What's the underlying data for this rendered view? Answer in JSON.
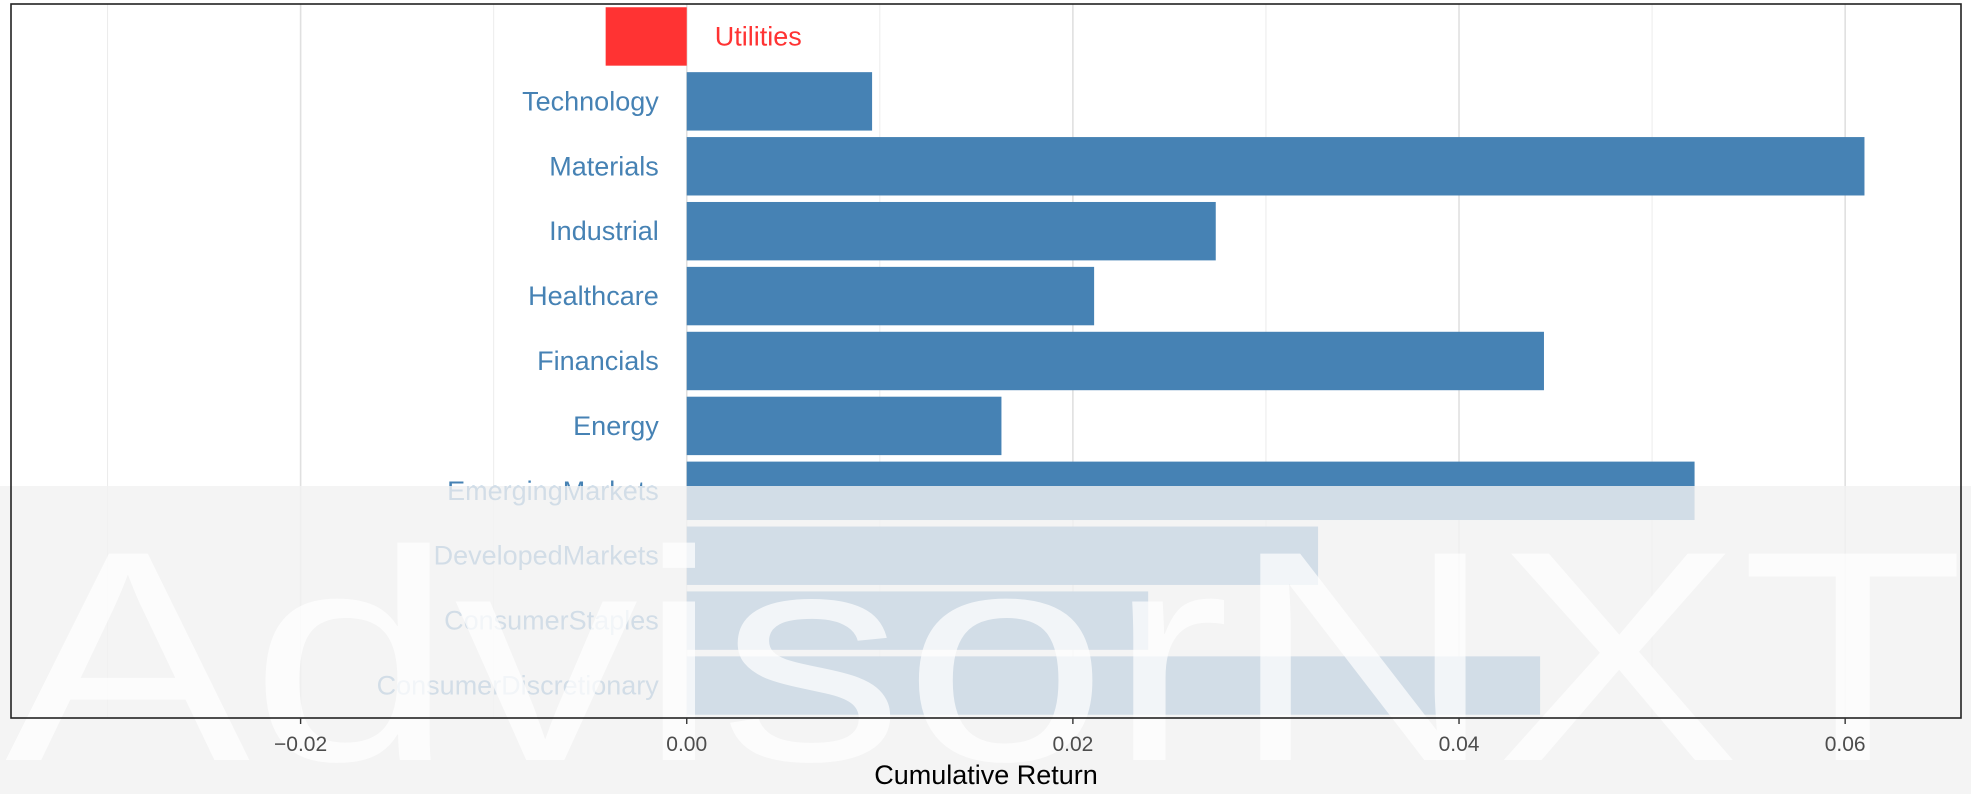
{
  "colors": {
    "positive_bar": "#4682B4",
    "negative_bar": "#FF3333",
    "positive_label": "#4682B4",
    "negative_label": "#FF3333",
    "watermark_band": "#F2F2F2",
    "watermark_text": "#FFFFFF",
    "watermark_accent": "#E9F6FA"
  },
  "watermark": {
    "text": "AdvisorNXT"
  },
  "chart_data": {
    "type": "bar",
    "orientation": "horizontal",
    "categories": [
      "ConsumerDiscretionary",
      "ConsumerStaples",
      "DevelopedMarkets",
      "EmergingMarkets",
      "Energy",
      "Financials",
      "Healthcare",
      "Industrial",
      "Materials",
      "Technology",
      "Utilities"
    ],
    "values": [
      0.0442,
      0.0239,
      0.0327,
      0.0522,
      0.0163,
      0.0444,
      0.0211,
      0.0274,
      0.061,
      0.0096,
      -0.0042
    ],
    "xlabel": "Cumulative Return",
    "ylabel": "",
    "xlim": [
      -0.035,
      0.066
    ],
    "xticks": [
      -0.02,
      0.0,
      0.02,
      0.04,
      0.06
    ],
    "xtick_labels": [
      "−0.02",
      "0.00",
      "0.02",
      "0.04",
      "0.06"
    ],
    "grid": true,
    "legend": "none"
  }
}
